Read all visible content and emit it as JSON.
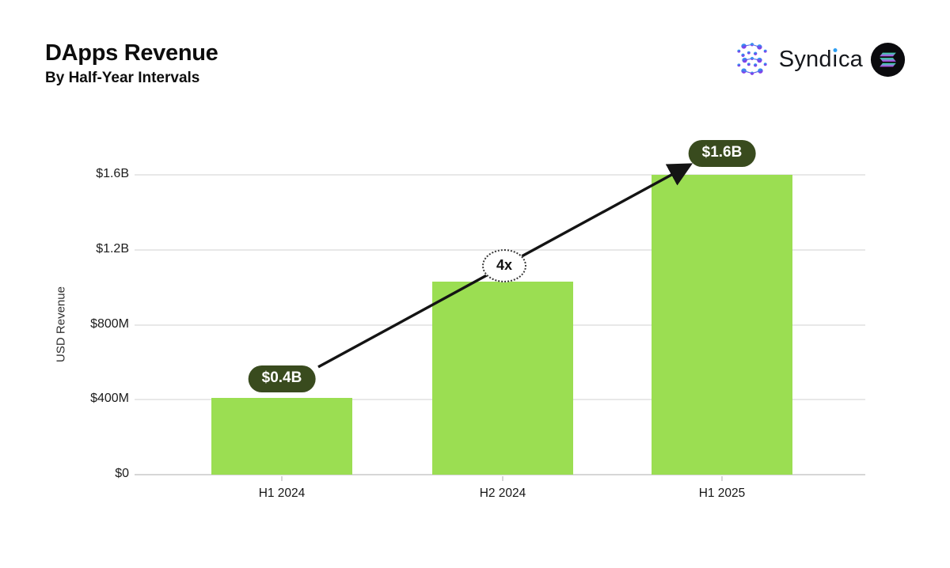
{
  "header": {
    "title": "DApps Revenue",
    "subtitle": "By Half-Year Intervals",
    "brand": "Syndica",
    "brand_parts": {
      "pre": "Synd",
      "i": "ı",
      "post": "ca"
    }
  },
  "chart_data": {
    "type": "bar",
    "title": "DApps Revenue",
    "subtitle": "By Half-Year Intervals",
    "categories": [
      "H1 2024",
      "H2 2024",
      "H1 2025"
    ],
    "values_musd": [
      410,
      1030,
      1600
    ],
    "xlabel": "",
    "ylabel": "USD Revenue",
    "ylim_musd": [
      0,
      1600
    ],
    "grid": true,
    "yticks": [
      {
        "value": 0,
        "label": "$0"
      },
      {
        "value": 400,
        "label": "$400M"
      },
      {
        "value": 800,
        "label": "$800M"
      },
      {
        "value": 1200,
        "label": "$1.2B"
      },
      {
        "value": 1600,
        "label": "$1.6B"
      }
    ],
    "bar_color": "#9BDE52",
    "annotations": {
      "start": {
        "label": "$0.4B",
        "bar_index": 0
      },
      "end": {
        "label": "$1.6B",
        "bar_index": 2
      },
      "multiplier": "4x"
    }
  },
  "colors": {
    "bar": "#9BDE52",
    "pill_bg": "#394B1E",
    "pill_text": "#FFFFFF",
    "grid": "#E8E8E8",
    "axis": "#D6D6D6",
    "arrow": "#141414",
    "syndica_dot_blue": "#2E9FF2",
    "solana_teal": "#2FE3A4",
    "solana_purple": "#C13FF0"
  }
}
